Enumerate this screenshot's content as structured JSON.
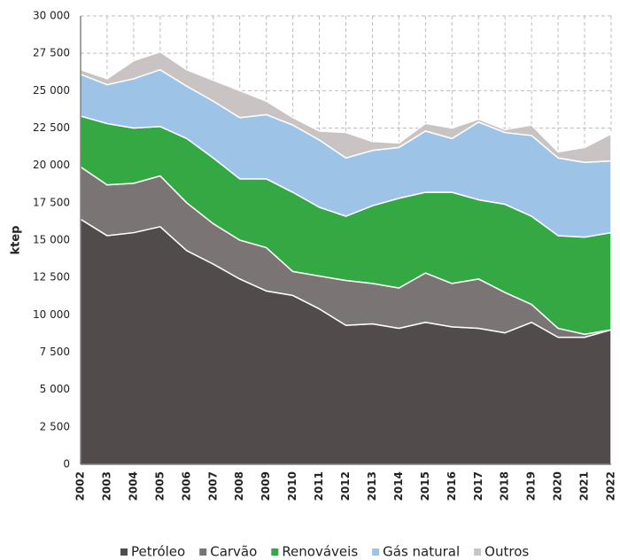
{
  "chart_data": {
    "type": "stacked_area",
    "y_label": "ktep",
    "categories": [
      "2002",
      "2003",
      "2004",
      "2005",
      "2006",
      "2007",
      "2008",
      "2009",
      "2010",
      "2011",
      "2012",
      "2013",
      "2014",
      "2015",
      "2016",
      "2017",
      "2018",
      "2019",
      "2020",
      "2021",
      "2022"
    ],
    "series": [
      {
        "name": "Petróleo",
        "color": "#514b4b",
        "values": [
          16400,
          15300,
          15500,
          15900,
          14300,
          13400,
          12400,
          11600,
          11300,
          10400,
          9300,
          9400,
          9100,
          9500,
          9200,
          9100,
          8800,
          9500,
          8500,
          8500,
          9000
        ]
      },
      {
        "name": "Carvão",
        "color": "#7a7474",
        "values": [
          3500,
          3400,
          3300,
          3400,
          3200,
          2700,
          2600,
          2900,
          1600,
          2200,
          3000,
          2700,
          2700,
          3300,
          2900,
          3300,
          2700,
          1200,
          600,
          200,
          0
        ]
      },
      {
        "name": "Renováveis",
        "color": "#33a843",
        "values": [
          3400,
          4100,
          3700,
          3300,
          4300,
          4400,
          4100,
          4600,
          5300,
          4600,
          4300,
          5200,
          6000,
          5400,
          6100,
          5300,
          5900,
          5900,
          6200,
          6500,
          6500
        ]
      },
      {
        "name": "Gás natural",
        "color": "#9dc3e6",
        "values": [
          2800,
          2600,
          3300,
          3800,
          3500,
          3800,
          4100,
          4300,
          4500,
          4500,
          3900,
          3700,
          3400,
          4100,
          3600,
          5200,
          4800,
          5400,
          5200,
          5000,
          4800
        ]
      },
      {
        "name": "Outros",
        "color": "#c9c3c3",
        "values": [
          300,
          400,
          1200,
          1200,
          1100,
          1400,
          1800,
          900,
          500,
          600,
          1700,
          600,
          300,
          500,
          700,
          200,
          200,
          700,
          400,
          1000,
          1800
        ]
      }
    ],
    "ylim": [
      0,
      30000
    ],
    "yticks": [
      0,
      {
        "value": 2500,
        "label": "2 500"
      },
      {
        "value": 5000,
        "label": "5 000"
      },
      {
        "value": 7500,
        "label": "7 500"
      },
      {
        "value": 10000,
        "label": "10 000"
      },
      {
        "value": 12500,
        "label": "12 500"
      },
      {
        "value": 15000,
        "label": "15 000"
      },
      {
        "value": 17500,
        "label": "17 500"
      },
      {
        "value": 20000,
        "label": "20 000"
      },
      {
        "value": 22500,
        "label": "22 500"
      },
      {
        "value": 25000,
        "label": "25 000"
      },
      {
        "value": 27500,
        "label": "27 500"
      },
      {
        "value": 30000,
        "label": "30 000"
      }
    ],
    "grid": true,
    "legend": "bottom"
  }
}
